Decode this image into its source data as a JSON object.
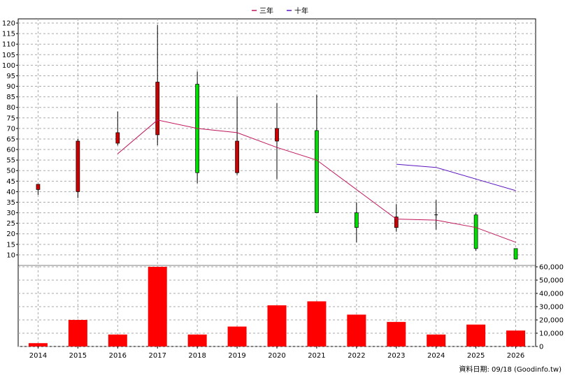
{
  "chart_data": {
    "type": "candlestick+bar",
    "legend": [
      {
        "name": "三年",
        "color": "#c0145a"
      },
      {
        "name": "十年",
        "color": "#5a14c0"
      }
    ],
    "legend_placement": "top-center",
    "grid": true,
    "x_labels": [
      "2014",
      "2015",
      "2016",
      "2017",
      "2018",
      "2019",
      "2020",
      "2021",
      "2022",
      "2023",
      "2024",
      "2025",
      "2026"
    ],
    "price_axis": {
      "ylim": [
        5,
        122
      ],
      "ticks": [
        10,
        15,
        20,
        25,
        30,
        35,
        40,
        45,
        50,
        55,
        60,
        65,
        70,
        75,
        80,
        85,
        90,
        95,
        100,
        105,
        110,
        115,
        120
      ]
    },
    "volume_axis": {
      "ylim": [
        0,
        60000
      ],
      "ticks": [
        0,
        10000,
        20000,
        30000,
        40000,
        50000,
        60000
      ],
      "tick_labels": [
        "0",
        "10,000",
        "20,000",
        "30,000",
        "40,000",
        "50,000",
        "60,000"
      ]
    },
    "candles": [
      {
        "year": "2014",
        "open": 41,
        "close": 43.5,
        "high": 43.5,
        "low": 38.5
      },
      {
        "year": "2015",
        "open": 40,
        "close": 64,
        "high": 65,
        "low": 37
      },
      {
        "year": "2016",
        "open": 63,
        "close": 68,
        "high": 78,
        "low": 62
      },
      {
        "year": "2017",
        "open": 67,
        "close": 92,
        "high": 119,
        "low": 62
      },
      {
        "year": "2018",
        "open": 91,
        "close": 49,
        "high": 97,
        "low": 44
      },
      {
        "year": "2019",
        "open": 49,
        "close": 64,
        "high": 85,
        "low": 48
      },
      {
        "year": "2020",
        "open": 64,
        "close": 70,
        "high": 82,
        "low": 46
      },
      {
        "year": "2021",
        "open": 69,
        "close": 30,
        "high": 86,
        "low": 30
      },
      {
        "year": "2022",
        "open": 30,
        "close": 23,
        "high": 35,
        "low": 16
      },
      {
        "year": "2023",
        "open": 23,
        "close": 28,
        "high": 34,
        "low": 21
      },
      {
        "year": "2024",
        "open": 29,
        "close": 29,
        "high": 36,
        "low": 22
      },
      {
        "year": "2025",
        "open": 29,
        "close": 13,
        "high": 30,
        "low": 12
      },
      {
        "year": "2026",
        "open": 13,
        "close": 8,
        "high": 13,
        "low": 8
      }
    ],
    "series": [
      {
        "name": "三年",
        "points": [
          [
            "2016",
            58
          ],
          [
            "2017",
            74
          ],
          [
            "2018",
            70
          ],
          [
            "2019",
            68
          ],
          [
            "2020",
            61
          ],
          [
            "2021",
            55
          ],
          [
            "2022",
            41
          ],
          [
            "2023",
            27
          ],
          [
            "2024",
            26.5
          ],
          [
            "2025",
            23
          ],
          [
            "2026",
            16
          ]
        ]
      },
      {
        "name": "十年",
        "points": [
          [
            "2023",
            53
          ],
          [
            "2024",
            51.5
          ],
          [
            "2025",
            46
          ],
          [
            "2026",
            40.5
          ]
        ]
      }
    ],
    "volume": [
      2500,
      20000,
      9000,
      60000,
      9000,
      15000,
      31000,
      34000,
      24000,
      18500,
      9000,
      16500,
      12000
    ],
    "footer_note": "資料日期: 09/18  (Goodinfo.tw)"
  }
}
